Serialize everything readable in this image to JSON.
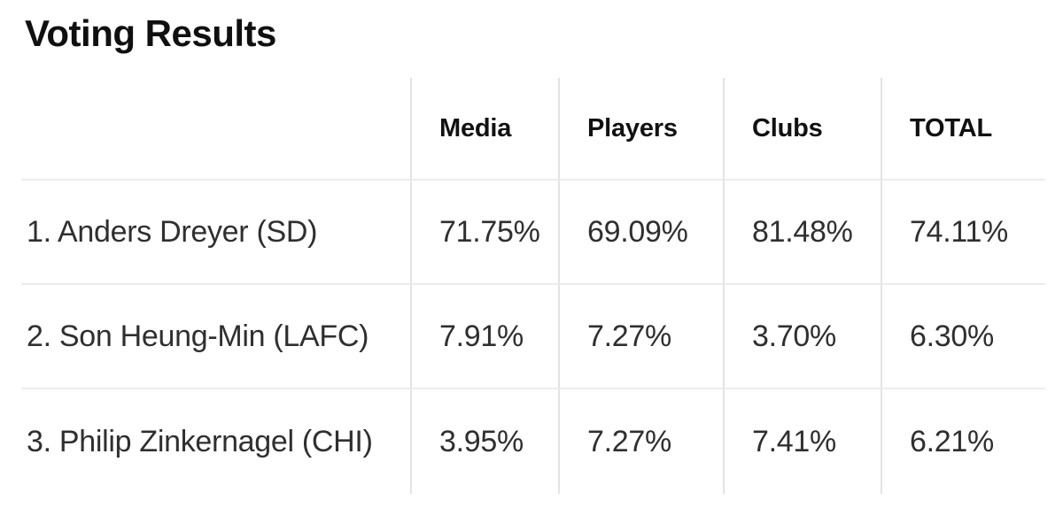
{
  "page": {
    "title": "Voting Results"
  },
  "table": {
    "headers": {
      "name": "",
      "media": "Media",
      "players": "Players",
      "clubs": "Clubs",
      "total": "TOTAL"
    },
    "rows": [
      {
        "name": "1. Anders Dreyer (SD)",
        "media": "71.75%",
        "players": "69.09%",
        "clubs": "81.48%",
        "total": "74.11%"
      },
      {
        "name": "2. Son Heung-Min (LAFC)",
        "media": "7.91%",
        "players": "7.27%",
        "clubs": "3.70%",
        "total": "6.30%"
      },
      {
        "name": "3. Philip Zinkernagel (CHI)",
        "media": "3.95%",
        "players": "7.27%",
        "clubs": "7.41%",
        "total": "6.21%"
      }
    ]
  },
  "colors": {
    "background": "#ffffff",
    "title_text": "#101010",
    "header_text": "#111111",
    "body_text": "#2f2f2f",
    "horizontal_rule": "#ececec",
    "vertical_rule": "#e3e3e3"
  },
  "chart_data": {
    "type": "table",
    "title": "Voting Results",
    "columns": [
      "",
      "Media",
      "Players",
      "Clubs",
      "TOTAL"
    ],
    "rows": [
      [
        "1. Anders Dreyer (SD)",
        "71.75%",
        "69.09%",
        "81.48%",
        "74.11%"
      ],
      [
        "2. Son Heung-Min (LAFC)",
        "7.91%",
        "7.27%",
        "3.70%",
        "6.30%"
      ],
      [
        "3. Philip Zinkernagel (CHI)",
        "3.95%",
        "7.27%",
        "7.41%",
        "6.21%"
      ]
    ],
    "values_numeric_percent": {
      "categories": [
        "Anders Dreyer (SD)",
        "Son Heung-Min (LAFC)",
        "Philip Zinkernagel (CHI)"
      ],
      "series": [
        {
          "name": "Media",
          "values": [
            71.75,
            7.91,
            3.95
          ]
        },
        {
          "name": "Players",
          "values": [
            69.09,
            7.27,
            7.27
          ]
        },
        {
          "name": "Clubs",
          "values": [
            81.48,
            3.7,
            7.41
          ]
        },
        {
          "name": "TOTAL",
          "values": [
            74.11,
            6.3,
            6.21
          ]
        }
      ]
    }
  }
}
